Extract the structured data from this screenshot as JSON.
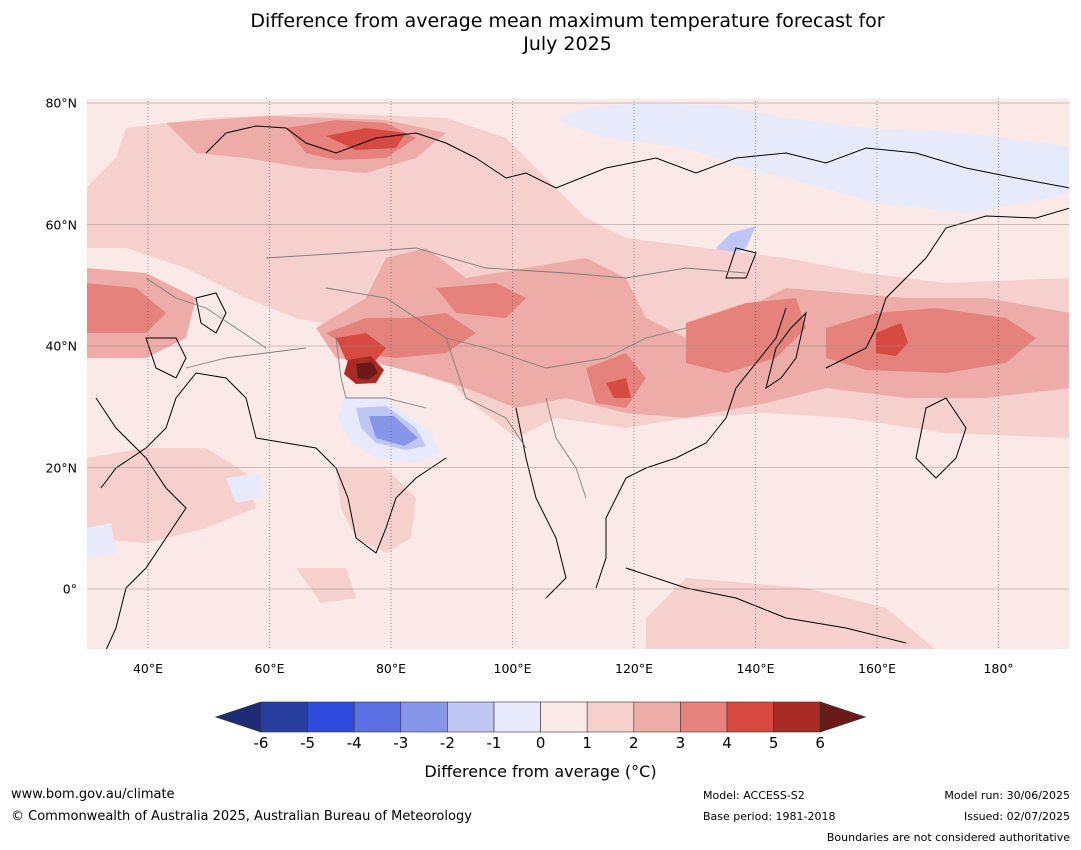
{
  "title": {
    "line1": "Difference from average mean maximum temperature forecast for",
    "line2": "July 2025"
  },
  "map": {
    "lat_ticks": [
      {
        "label": "80°N",
        "value": 80
      },
      {
        "label": "60°N",
        "value": 60
      },
      {
        "label": "40°N",
        "value": 40
      },
      {
        "label": "20°N",
        "value": 20
      },
      {
        "label": "0°",
        "value": 0
      }
    ],
    "lon_ticks": [
      {
        "label": "40°E",
        "value": 40
      },
      {
        "label": "60°E",
        "value": 60
      },
      {
        "label": "80°E",
        "value": 80
      },
      {
        "label": "100°E",
        "value": 100
      },
      {
        "label": "120°E",
        "value": 120
      },
      {
        "label": "140°E",
        "value": 140
      },
      {
        "label": "160°E",
        "value": 160
      },
      {
        "label": "180°",
        "value": 180
      }
    ]
  },
  "legend": {
    "levels": [
      "-6",
      "-5",
      "-4",
      "-3",
      "-2",
      "-1",
      "0",
      "1",
      "2",
      "3",
      "4",
      "5",
      "6"
    ],
    "colors": [
      "#283e9e",
      "#2f4bdb",
      "#5b70e2",
      "#8796e8",
      "#c0c6f3",
      "#e7eafb",
      "#fbe9e7",
      "#f5d0cc",
      "#edaca8",
      "#e5827c",
      "#d74a41",
      "#a82b25"
    ],
    "under_color": "#1e2c78",
    "over_color": "#6b1b17",
    "label": "Difference from average (°C)"
  },
  "footer": {
    "website": "www.bom.gov.au/climate",
    "copyright": "© Commonwealth of Australia 2025, Australian Bureau of Meteorology",
    "model": "Model: ACCESS-S2",
    "base_period": "Base period: 1981-2018",
    "model_run": "Model run: 30/06/2025",
    "issued": "Issued: 02/07/2025",
    "disclaimer": "Boundaries are not considered authoritative"
  }
}
